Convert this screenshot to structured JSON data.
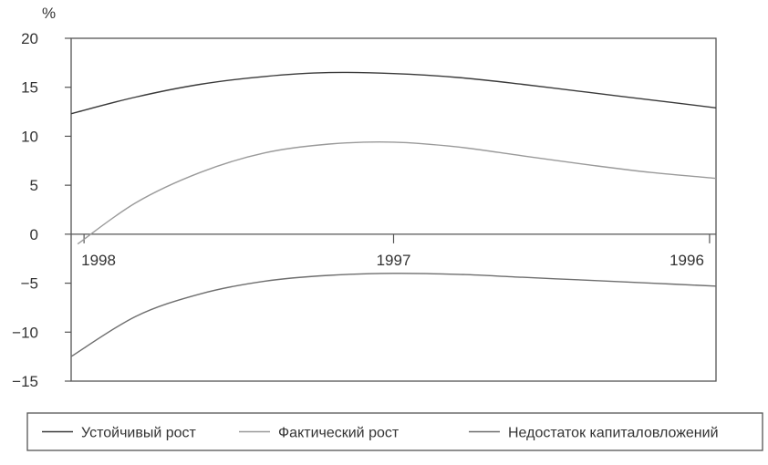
{
  "chart_data": {
    "type": "line",
    "ylabel": "%",
    "ylim": [
      -15,
      20
    ],
    "yticks": [
      20,
      15,
      10,
      5,
      0,
      -5,
      -10,
      -15
    ],
    "xlim": [
      0,
      1
    ],
    "x_reversed": true,
    "x_tick_labels": [
      {
        "label": "1998",
        "x": 0.02
      },
      {
        "label": "1997",
        "x": 0.5
      },
      {
        "label": "1996",
        "x": 0.99
      }
    ],
    "grid": false,
    "legend_position": "bottom",
    "series": [
      {
        "name": "Устойчивый рост",
        "color": "#3a3a3a",
        "x": [
          0,
          0.1,
          0.2,
          0.3,
          0.4,
          0.5,
          0.6,
          0.7,
          0.8,
          0.9,
          1.0
        ],
        "y": [
          12.3,
          14.0,
          15.3,
          16.1,
          16.5,
          16.4,
          16.0,
          15.3,
          14.5,
          13.7,
          12.9
        ]
      },
      {
        "name": "Фактический рост",
        "color": "#9a9a9a",
        "x": [
          0.01,
          0.1,
          0.2,
          0.3,
          0.4,
          0.5,
          0.6,
          0.7,
          0.8,
          0.9,
          1.0
        ],
        "y": [
          -1.0,
          3.2,
          6.3,
          8.3,
          9.2,
          9.4,
          8.9,
          8.0,
          7.1,
          6.3,
          5.7
        ]
      },
      {
        "name": "Недостаток капиталовложений",
        "color": "#6e6e6e",
        "x": [
          0,
          0.1,
          0.2,
          0.3,
          0.4,
          0.5,
          0.6,
          0.7,
          0.8,
          0.9,
          1.0
        ],
        "y": [
          -12.5,
          -8.4,
          -6.1,
          -4.8,
          -4.2,
          -4.0,
          -4.1,
          -4.4,
          -4.7,
          -5.0,
          -5.3
        ]
      }
    ]
  }
}
